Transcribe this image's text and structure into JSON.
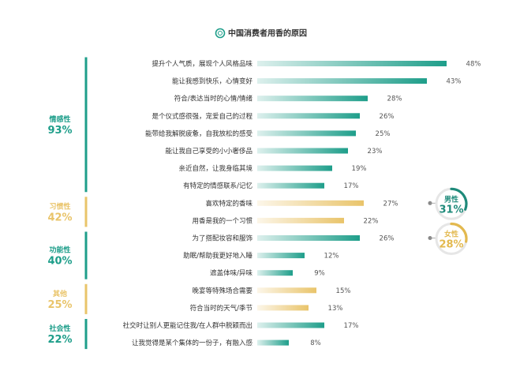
{
  "chart_data": {
    "type": "bar",
    "orientation": "horizontal",
    "title": "中国消费者用香的原因",
    "xlim": [
      0,
      50
    ],
    "categories": [
      "提升个人气质，展现个人风格品味",
      "能让我感到快乐，心情变好",
      "符合/表达当时的心情/情绪",
      "是个仪式感很强，宠爱自己的过程",
      "能带给我解脱疲惫，自我放松的感受",
      "能让我自己享受的小小奢侈品",
      "亲近自然，让我身临其境",
      "有特定的情感联系/记忆",
      "喜欢特定的香味",
      "用香是我的一个习惯",
      "为了搭配妆容和服饰",
      "助眠/帮助我更好地入睡",
      "遮盖体味/异味",
      "晚宴等特殊场合需要",
      "符合当时的天气/季节",
      "社交时让别人更能记住我/在人群中脱颖而出",
      "让我觉得是某个集体的一份子，有融入感"
    ],
    "values": [
      48,
      43,
      28,
      26,
      25,
      23,
      19,
      17,
      27,
      22,
      26,
      12,
      9,
      15,
      13,
      17,
      8
    ],
    "value_labels": [
      "48%",
      "43%",
      "28%",
      "26%",
      "25%",
      "23%",
      "19%",
      "17%",
      "27%",
      "22%",
      "26%",
      "12%",
      "9%",
      "15%",
      "13%",
      "17%",
      "8%"
    ],
    "bar_group": [
      0,
      0,
      0,
      0,
      0,
      0,
      0,
      0,
      1,
      1,
      2,
      2,
      2,
      3,
      3,
      4,
      4
    ],
    "groups": [
      {
        "name": "情感性",
        "pct": "93%",
        "color": "#1e9e8a"
      },
      {
        "name": "习惯性",
        "pct": "42%",
        "color": "#e9c46a"
      },
      {
        "name": "功能性",
        "pct": "40%",
        "color": "#1e9e8a"
      },
      {
        "name": "其他",
        "pct": "25%",
        "color": "#e9c46a"
      },
      {
        "name": "社会性",
        "pct": "22%",
        "color": "#1e9e8a"
      }
    ],
    "callouts": [
      {
        "name": "男性",
        "pct": "31%",
        "value": 31,
        "color": "#1e8a7a",
        "target_bar": 8
      },
      {
        "name": "女性",
        "pct": "28%",
        "value": 28,
        "color": "#e3b94f",
        "target_bar": 10
      }
    ],
    "colors": {
      "teal": "#1e9e8a",
      "gold": "#e9c46a"
    },
    "grid": false,
    "legend": "none"
  }
}
